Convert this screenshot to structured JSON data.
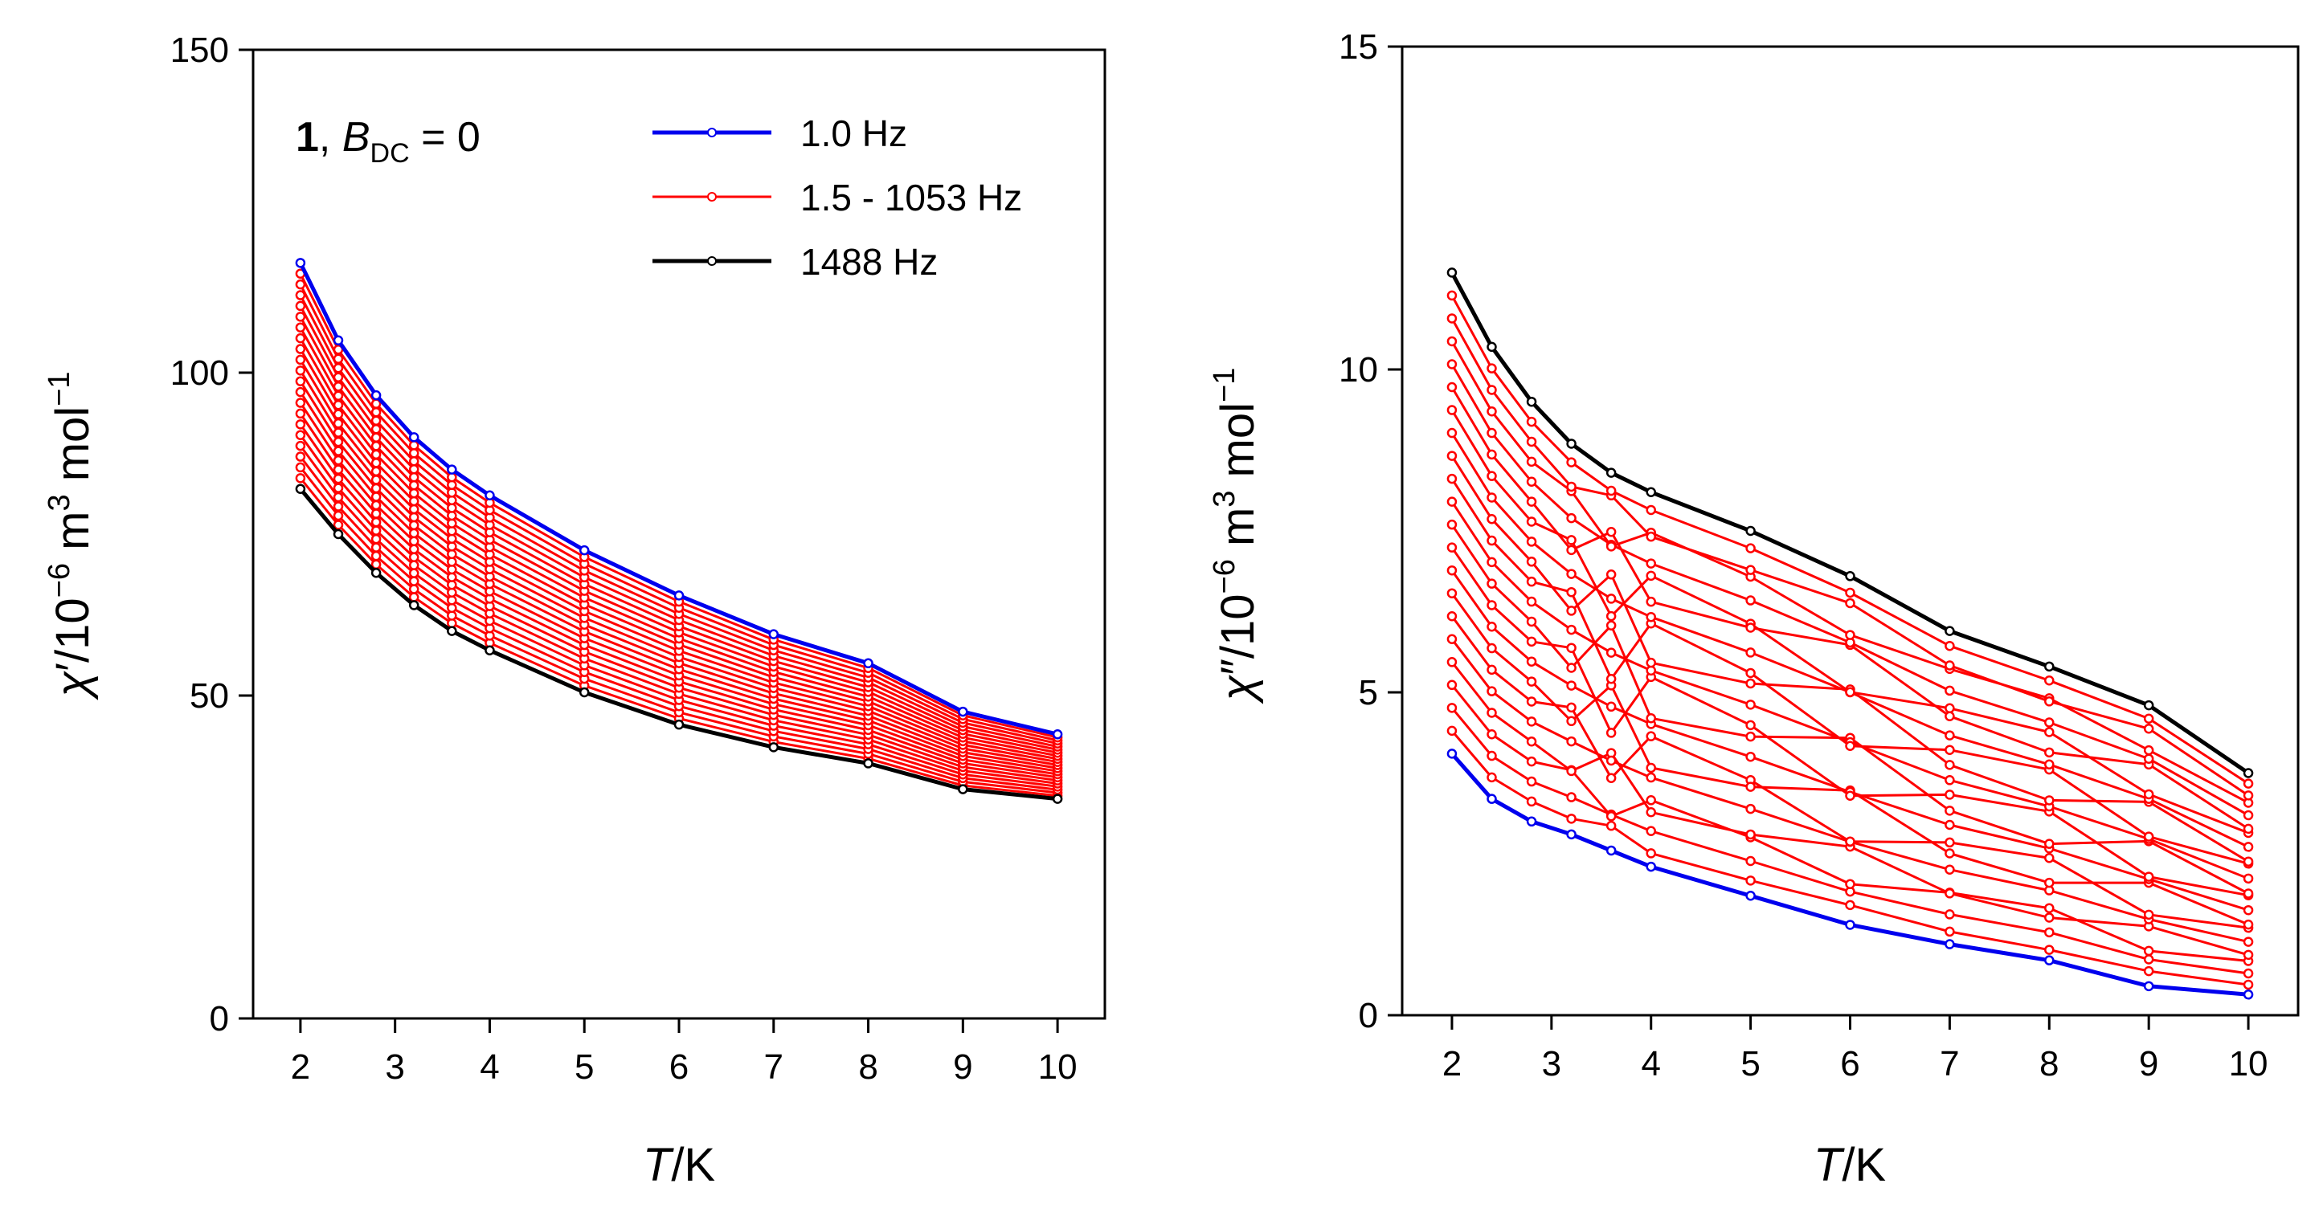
{
  "figure": {
    "legend": [
      {
        "label": "1.0 Hz",
        "color": "#0000ee"
      },
      {
        "label": "1.5 - 1053  Hz",
        "color": "#ff0000"
      },
      {
        "label": "1488 Hz",
        "color": "#000000"
      }
    ],
    "annotation": {
      "compound": "1",
      "separator": ", ",
      "var": "B",
      "sub": "DC",
      "rest": " = 0"
    }
  },
  "chart_data": [
    {
      "type": "line",
      "panel": "left",
      "xlabel": {
        "italic": "T",
        "rest": "/K"
      },
      "ylabel": {
        "greek": "χ",
        "prime": "′",
        "base": "/10",
        "exp": "−6",
        "unit": " m",
        "unit_exp": "3",
        "unit2": " mol",
        "unit2_exp": "−1"
      },
      "xlim": [
        1.5,
        10.5
      ],
      "ylim": [
        0,
        150
      ],
      "xticks": [
        2,
        3,
        4,
        5,
        6,
        7,
        8,
        9,
        10
      ],
      "yticks": [
        0,
        50,
        100,
        150
      ],
      "x": [
        2,
        2.4,
        2.8,
        3.2,
        3.6,
        4,
        5,
        6,
        7,
        8,
        9,
        10
      ],
      "series": [
        {
          "name": "1.0 Hz",
          "color": "#0000ee",
          "values": [
            117,
            105,
            96.5,
            90,
            85,
            81,
            72.5,
            65.5,
            59.5,
            55,
            47.5,
            44
          ]
        },
        {
          "name": "1.5 - 1053 Hz",
          "color": "#ff0000",
          "group": true,
          "count": 20
        },
        {
          "name": "1488 Hz",
          "color": "#000000",
          "values": [
            82,
            75,
            69,
            64,
            60,
            57,
            50.5,
            45.5,
            42,
            39.5,
            35.5,
            34
          ]
        }
      ]
    },
    {
      "type": "line",
      "panel": "right",
      "xlabel": {
        "italic": "T",
        "rest": "/K"
      },
      "ylabel": {
        "greek": "χ",
        "prime": "″",
        "base": "/10",
        "exp": "−6",
        "unit": " m",
        "unit_exp": "3",
        "unit2": " mol",
        "unit2_exp": "−1"
      },
      "xlim": [
        1.5,
        10.5
      ],
      "ylim": [
        0,
        15
      ],
      "xticks": [
        2,
        3,
        4,
        5,
        6,
        7,
        8,
        9,
        10
      ],
      "yticks": [
        0,
        5,
        10,
        15
      ],
      "x": [
        2,
        2.4,
        2.8,
        3.2,
        3.6,
        4,
        5,
        6,
        7,
        8,
        9,
        10
      ],
      "series": [
        {
          "name": "1.0 Hz",
          "color": "#0000ee",
          "values": [
            4.05,
            3.35,
            3.0,
            2.8,
            2.55,
            2.3,
            1.85,
            1.4,
            1.1,
            0.85,
            0.45,
            0.32
          ]
        },
        {
          "name": "1.5 - 1053 Hz",
          "color": "#ff0000",
          "group": true,
          "count": 20
        },
        {
          "name": "1488 Hz",
          "color": "#000000",
          "values": [
            11.5,
            10.35,
            9.5,
            8.85,
            8.4,
            8.1,
            7.5,
            6.8,
            5.95,
            5.4,
            4.8,
            3.75
          ]
        }
      ]
    }
  ]
}
